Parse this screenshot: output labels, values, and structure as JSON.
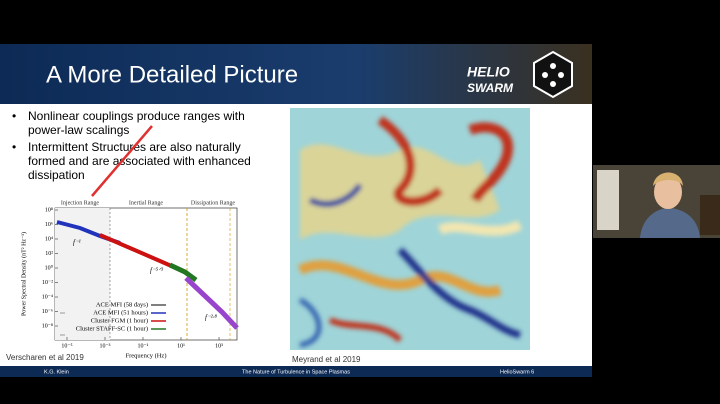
{
  "slide": {
    "title": "A More Detailed Picture",
    "logo": [
      "HELIO",
      "SWARM"
    ],
    "bullets": [
      "Nonlinear couplings produce ranges with power-law scalings",
      "Intermittent Structures are also naturally formed and are associated with enhanced dissipation"
    ],
    "figure": {
      "ranges": [
        "Injection Range",
        "Inertial Range",
        "Dissipation Range"
      ],
      "y_label": "Power Spectral Density (nT² Hz⁻¹)",
      "x_label": "Frequency (Hz)",
      "yticks": [
        "10⁸",
        "10⁶",
        "10⁴",
        "10²",
        "10⁰",
        "10⁻²",
        "10⁻⁴",
        "10⁻⁶",
        "10⁻⁸"
      ],
      "xticks": [
        "10⁻⁵",
        "10⁻³",
        "10⁻¹",
        "10¹",
        "10³"
      ],
      "slopes": [
        "f⁻¹",
        "f⁻⁵ᐟ³",
        "f⁻²·⁸"
      ],
      "legend": [
        "ACE MFI (58 days)",
        "ACE MFI (51 hours)",
        "Cluster FGM (1 hour)",
        "Cluster STAFF-SC (1 hour)"
      ]
    },
    "caption_left": "Verscharen et al 2019",
    "caption_right": "Meyrand et al 2019",
    "footer": [
      "K.G. Klein",
      "The Nature of Turbulence in Space Plasmas",
      "HelioSwarm 6"
    ]
  }
}
